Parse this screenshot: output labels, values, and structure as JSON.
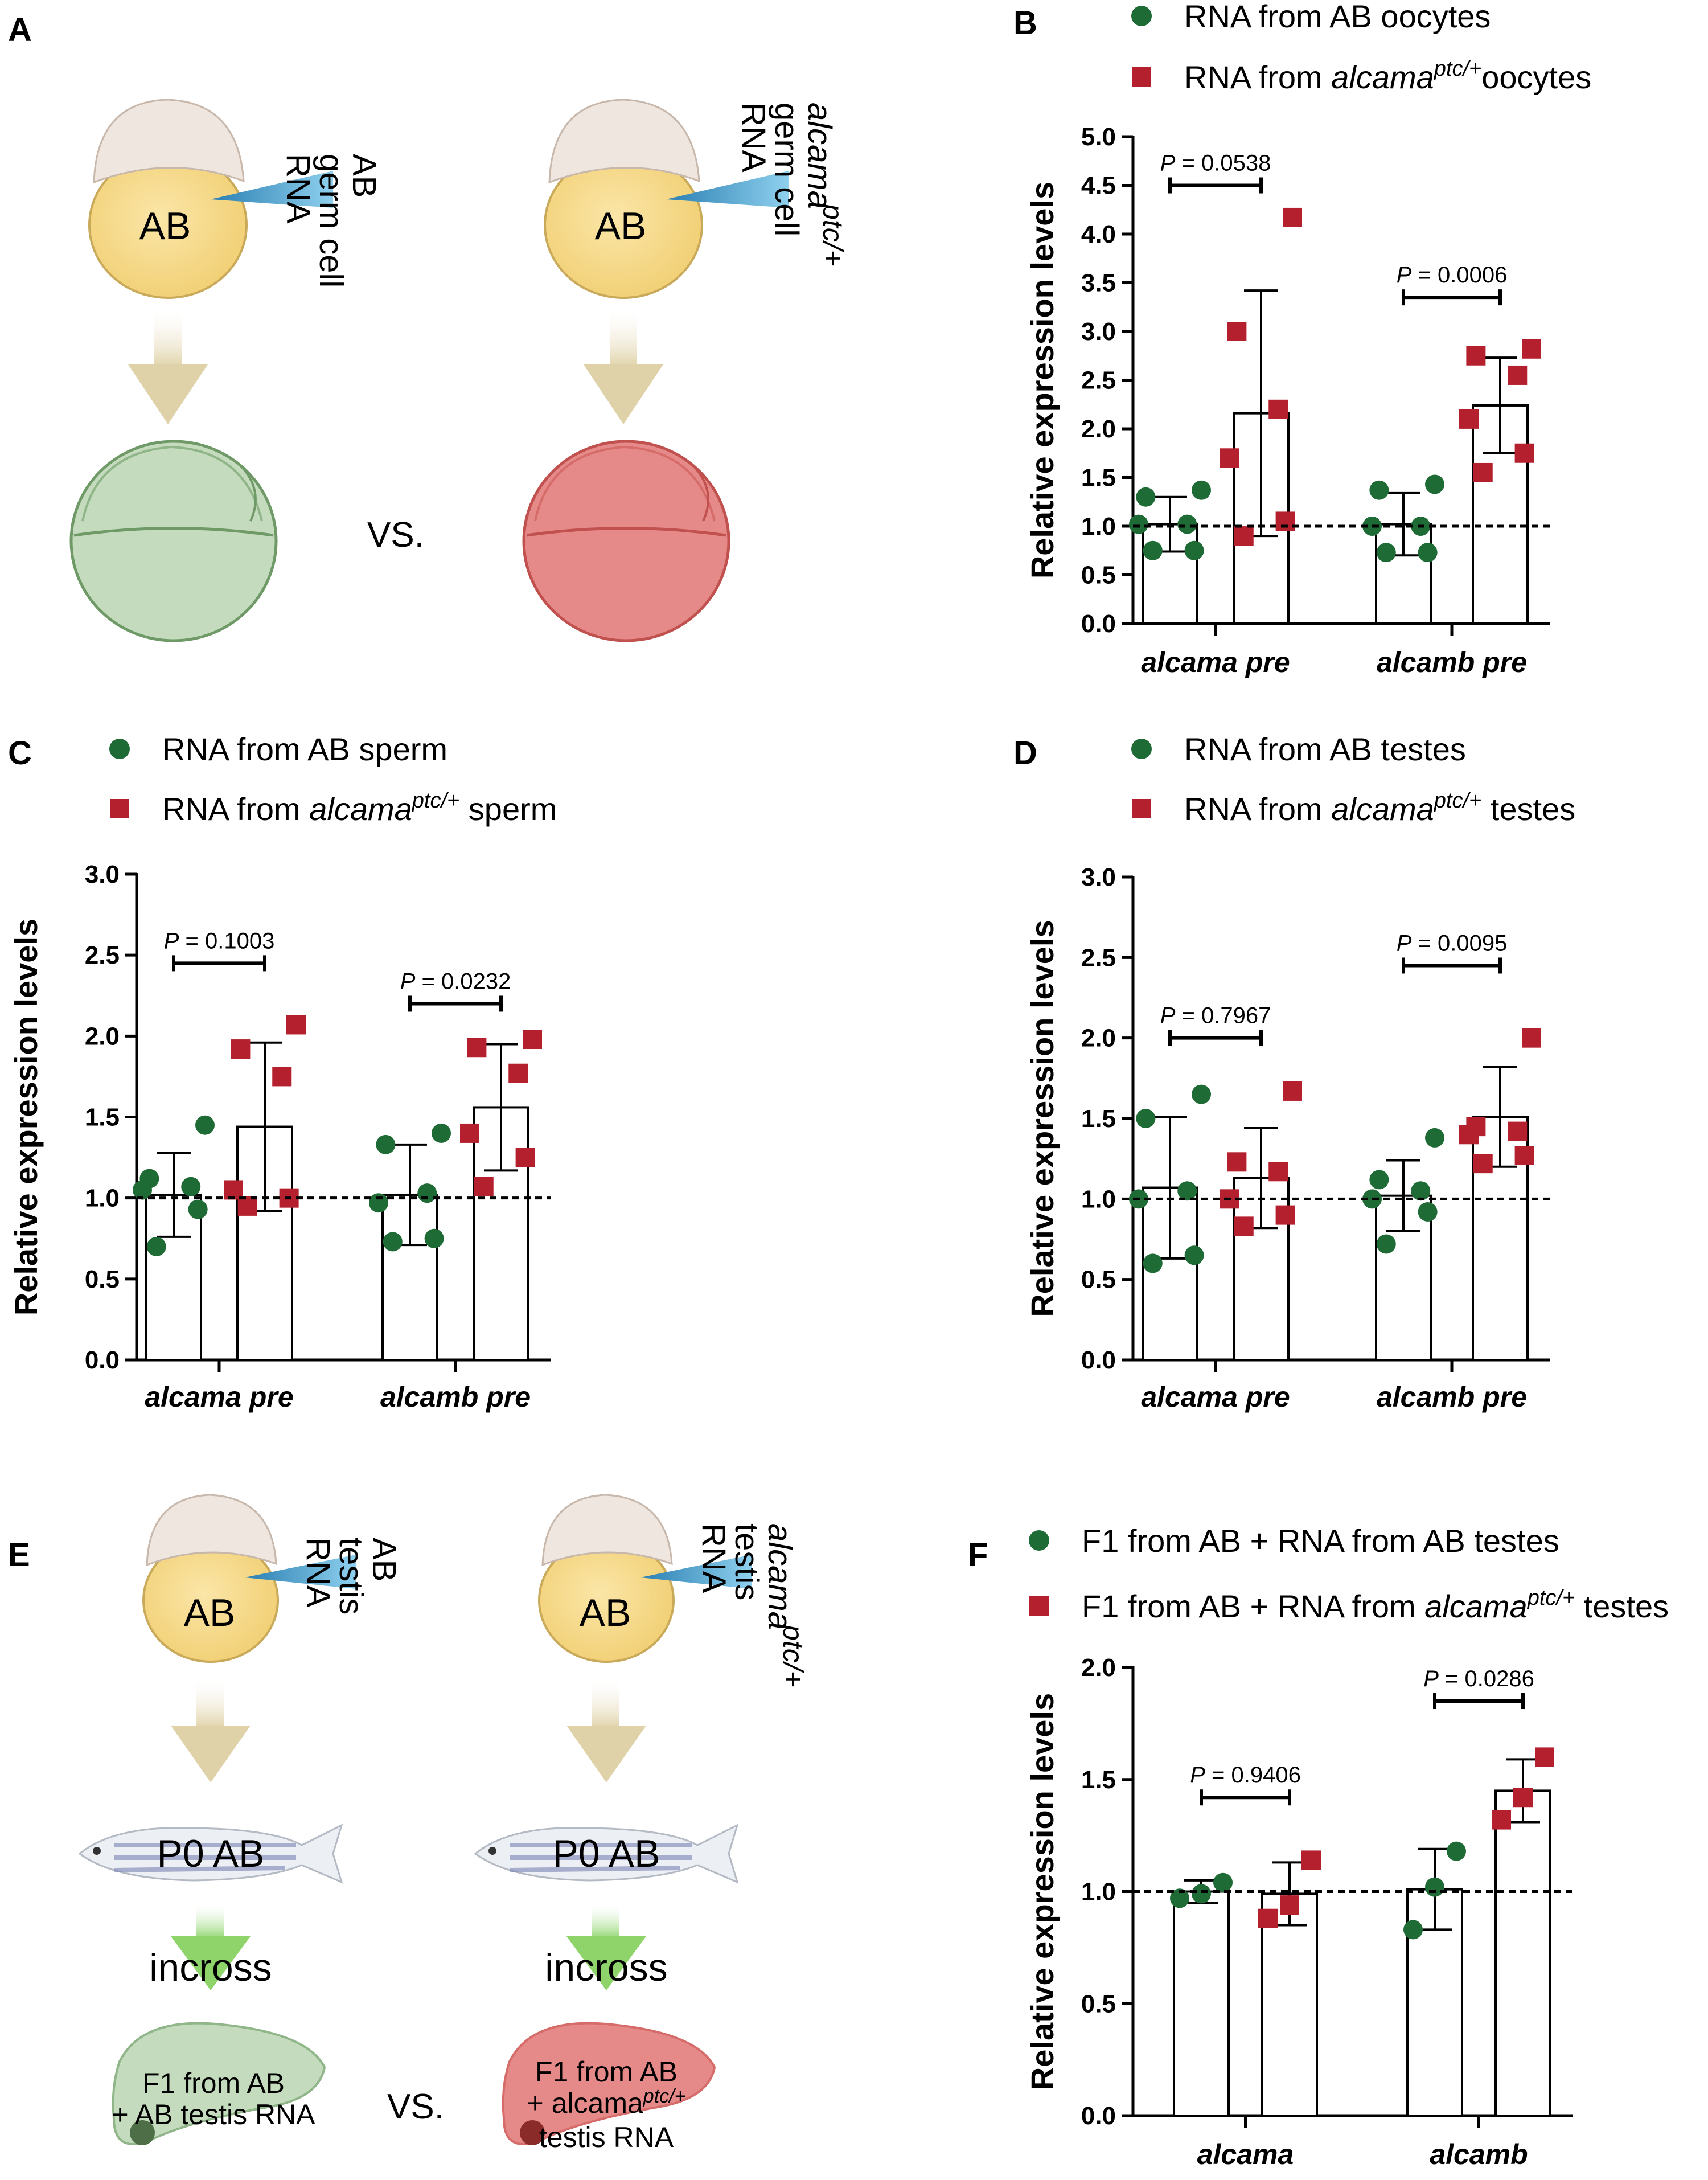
{
  "colors": {
    "ab": "#1e6b35",
    "mutant": "#b5202e",
    "yolk": "#f6d98a",
    "yolk_stroke": "#c9a95a",
    "cap": "#efe6df",
    "pipette": "#4fa8d3",
    "arrow_tan": "#e0d2a8",
    "arrow_green": "#9bd07a",
    "embryo_green": "#c4dcbd",
    "embryo_red": "#e58a88"
  },
  "panels": {
    "A": {
      "letter": "A",
      "left": {
        "cell_label": "AB",
        "pipette_lines": [
          "AB",
          "germ cell",
          "RNA"
        ]
      },
      "right": {
        "cell_label": "AB",
        "pipette_lines": [
          "alcama",
          "ptc/+",
          "germ cell",
          "RNA"
        ]
      },
      "vs": "VS."
    },
    "E": {
      "letter": "E",
      "left": {
        "cell_label": "AB",
        "pipette_lines": [
          "AB",
          "testis",
          "RNA"
        ],
        "fish_label": "P0 AB",
        "incross": "incross",
        "embryo_lines": [
          "F1 from AB",
          "+ AB testis RNA"
        ]
      },
      "right": {
        "cell_label": "AB",
        "pipette_lines": [
          "alcama",
          "ptc/+",
          "testis",
          "RNA"
        ],
        "fish_label": "P0 AB",
        "incross": "incross",
        "embryo_lines": [
          "F1 from AB",
          "+ alcama",
          "ptc/+",
          "testis RNA"
        ]
      },
      "vs": "VS."
    }
  },
  "chart_data": [
    {
      "panel": "B",
      "type": "bar",
      "ylabel": "Relative expression levels",
      "ylim": [
        0,
        5.0
      ],
      "yticks": [
        "0.0",
        "0.5",
        "1.0",
        "1.5",
        "2.0",
        "2.5",
        "3.0",
        "3.5",
        "4.0",
        "4.5",
        "5.0"
      ],
      "reference_line": 1.0,
      "legend": [
        {
          "text": "RNA from AB oocytes",
          "italic": "",
          "sup": "",
          "suffix": ""
        },
        {
          "text": "RNA from ",
          "italic": "alcama",
          "sup": "ptc/+",
          "suffix": "oocytes"
        }
      ],
      "categories": [
        "alcama pre",
        "alcamb pre"
      ],
      "series": [
        {
          "key": "ab",
          "means": [
            1.02,
            1.02
          ],
          "sd": [
            0.28,
            0.32
          ],
          "points": [
            [
              0.75,
              0.75,
              1.02,
              1.02,
              1.3,
              1.37
            ],
            [
              0.73,
              0.73,
              1.0,
              1.0,
              1.37,
              1.43
            ]
          ]
        },
        {
          "key": "mutant",
          "means": [
            2.16,
            2.24
          ],
          "sd": [
            1.26,
            0.49
          ],
          "points": [
            [
              0.9,
              1.05,
              1.7,
              2.2,
              3.0,
              4.17
            ],
            [
              1.55,
              1.75,
              2.1,
              2.55,
              2.75,
              2.82
            ]
          ]
        }
      ],
      "pvalues": [
        "0.0538",
        "0.0006"
      ],
      "pvalue_levels": [
        4.5,
        3.35
      ]
    },
    {
      "panel": "C",
      "type": "bar",
      "ylabel": "Relative expression levels",
      "ylim": [
        0,
        3.0
      ],
      "yticks": [
        "0.0",
        "0.5",
        "1.0",
        "1.5",
        "2.0",
        "2.5",
        "3.0"
      ],
      "reference_line": 1.0,
      "legend": [
        {
          "text": "RNA from AB sperm",
          "italic": "",
          "sup": "",
          "suffix": ""
        },
        {
          "text": "RNA from ",
          "italic": "alcama",
          "sup": "ptc/+",
          "suffix": " sperm"
        }
      ],
      "categories": [
        "alcama pre",
        "alcamb pre"
      ],
      "series": [
        {
          "key": "ab",
          "means": [
            1.02,
            1.02
          ],
          "sd": [
            0.26,
            0.31
          ],
          "points": [
            [
              0.7,
              0.93,
              1.05,
              1.07,
              1.12,
              1.45
            ],
            [
              0.73,
              0.75,
              0.97,
              1.03,
              1.33,
              1.4
            ]
          ]
        },
        {
          "key": "mutant",
          "means": [
            1.44,
            1.56
          ],
          "sd": [
            0.52,
            0.39
          ],
          "points": [
            [
              0.95,
              1.0,
              1.05,
              1.75,
              1.92,
              2.07
            ],
            [
              1.07,
              1.25,
              1.4,
              1.77,
              1.93,
              1.98
            ]
          ]
        }
      ],
      "pvalues": [
        "0.1003",
        "0.0232"
      ],
      "pvalue_levels": [
        2.45,
        2.2
      ]
    },
    {
      "panel": "D",
      "type": "bar",
      "ylabel": "Relative expression levels",
      "ylim": [
        0,
        3.0
      ],
      "yticks": [
        "0.0",
        "0.5",
        "1.0",
        "1.5",
        "2.0",
        "2.5",
        "3.0"
      ],
      "reference_line": 1.0,
      "legend": [
        {
          "text": "RNA from AB testes",
          "italic": "",
          "sup": "",
          "suffix": ""
        },
        {
          "text": "RNA from ",
          "italic": "alcama",
          "sup": "ptc/+",
          "suffix": " testes"
        }
      ],
      "categories": [
        "alcama pre",
        "alcamb pre"
      ],
      "series": [
        {
          "key": "ab",
          "means": [
            1.07,
            1.02
          ],
          "sd": [
            0.44,
            0.22
          ],
          "points": [
            [
              0.6,
              0.65,
              1.0,
              1.05,
              1.5,
              1.65
            ],
            [
              0.72,
              0.92,
              1.0,
              1.05,
              1.12,
              1.38
            ]
          ]
        },
        {
          "key": "mutant",
          "means": [
            1.13,
            1.51
          ],
          "sd": [
            0.31,
            0.31
          ],
          "points": [
            [
              0.83,
              0.9,
              1.0,
              1.17,
              1.23,
              1.67
            ],
            [
              1.22,
              1.27,
              1.4,
              1.42,
              1.45,
              2.0
            ]
          ]
        }
      ],
      "pvalues": [
        "0.7967",
        "0.0095"
      ],
      "pvalue_levels": [
        2.0,
        2.45
      ]
    },
    {
      "panel": "F",
      "type": "bar",
      "ylabel": "Relative expression levels",
      "ylim": [
        0,
        2.0
      ],
      "yticks": [
        "0.0",
        "0.5",
        "1.0",
        "1.5",
        "2.0"
      ],
      "reference_line": 1.0,
      "legend": [
        {
          "text": "F1 from AB + RNA from AB testes",
          "italic": "",
          "sup": "",
          "suffix": ""
        },
        {
          "text": "F1 from AB + RNA from ",
          "italic": "alcama",
          "sup": "ptc/+",
          "suffix": " testes"
        }
      ],
      "categories": [
        "alcama",
        "alcamb"
      ],
      "series": [
        {
          "key": "ab",
          "means": [
            1.0,
            1.01
          ],
          "sd": [
            0.05,
            0.18
          ],
          "points": [
            [
              0.97,
              0.99,
              1.04
            ],
            [
              0.83,
              1.02,
              1.18
            ]
          ]
        },
        {
          "key": "mutant",
          "means": [
            0.99,
            1.45
          ],
          "sd": [
            0.14,
            0.14
          ],
          "points": [
            [
              0.88,
              0.94,
              1.14
            ],
            [
              1.32,
              1.42,
              1.6
            ]
          ]
        }
      ],
      "pvalues": [
        "0.9406",
        "0.0286"
      ],
      "pvalue_levels": [
        1.42,
        1.85
      ]
    }
  ]
}
